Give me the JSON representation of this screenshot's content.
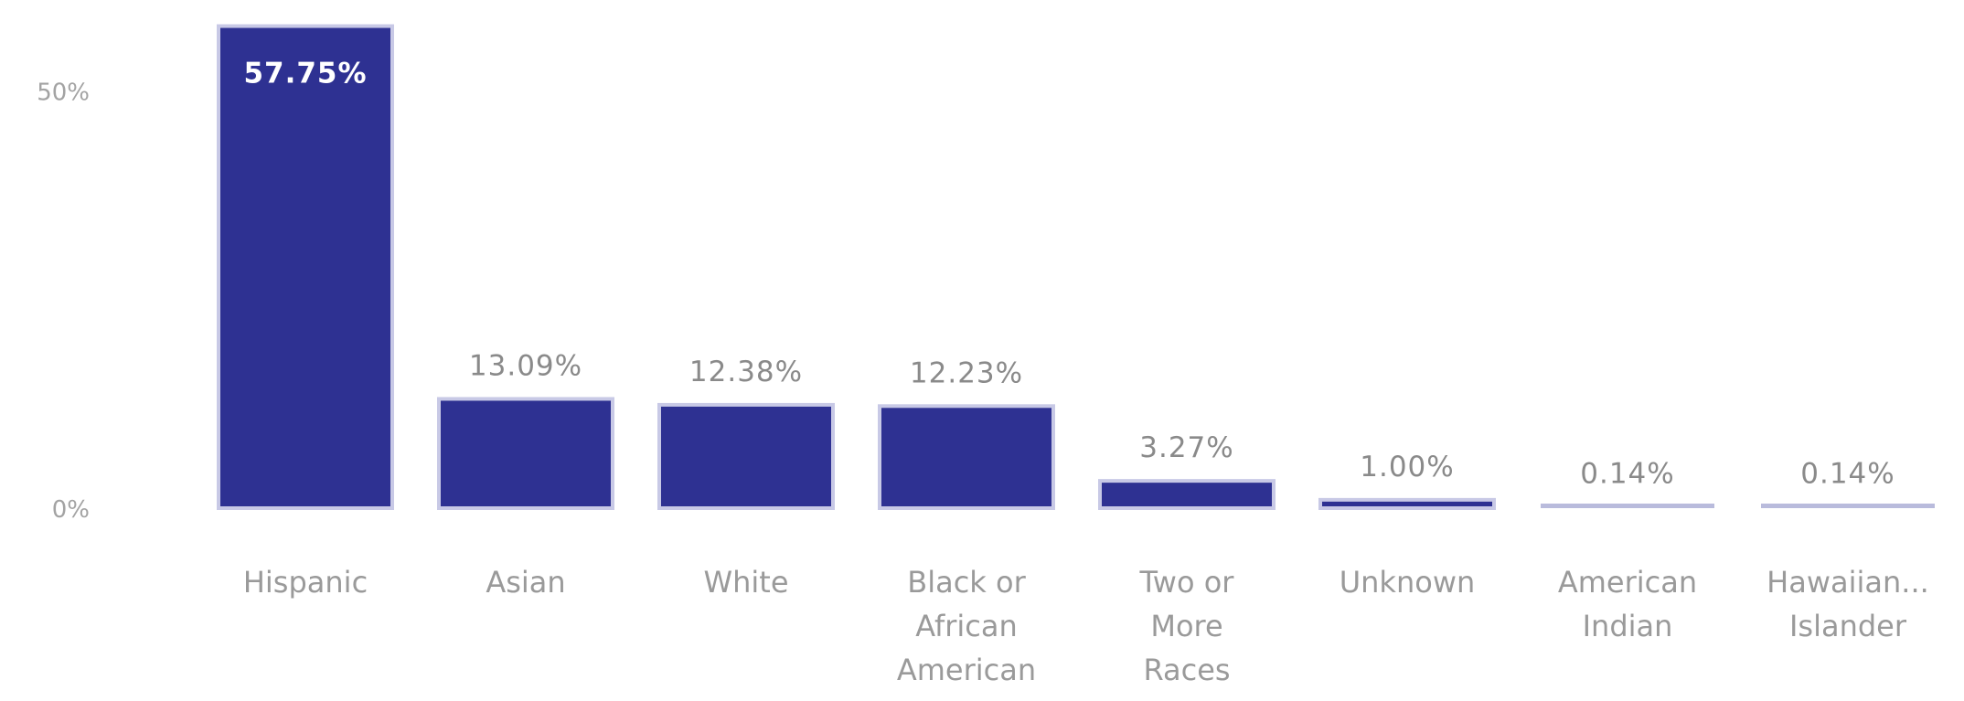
{
  "chart_data": {
    "type": "bar",
    "categories": [
      "Hispanic",
      "Asian",
      "White",
      "Black or African American",
      "Two or More Races",
      "Unknown",
      "American Indian",
      "Hawaiian... Islander"
    ],
    "category_lines": [
      [
        "Hispanic"
      ],
      [
        "Asian"
      ],
      [
        "White"
      ],
      [
        "Black or",
        "African",
        "American"
      ],
      [
        "Two or",
        "More",
        "Races"
      ],
      [
        "Unknown"
      ],
      [
        "American",
        "Indian"
      ],
      [
        "Hawaiian...",
        "Islander"
      ]
    ],
    "values": [
      57.75,
      13.09,
      12.38,
      12.23,
      3.27,
      1.0,
      0.14,
      0.14
    ],
    "data_labels": [
      "57.75%",
      "13.09%",
      "12.38%",
      "12.23%",
      "3.27%",
      "1.00%",
      "0.14%",
      "0.14%"
    ],
    "yticks": [
      {
        "value": 0,
        "label": "0%"
      },
      {
        "value": 50,
        "label": "50%"
      }
    ],
    "ylim": [
      0,
      60
    ],
    "title": "",
    "xlabel": "",
    "ylabel": "",
    "grid": false,
    "colors": {
      "bar": "#2e3192",
      "bar_outline": "#c8c9e6",
      "small_bar": "#b9bbdc"
    }
  }
}
